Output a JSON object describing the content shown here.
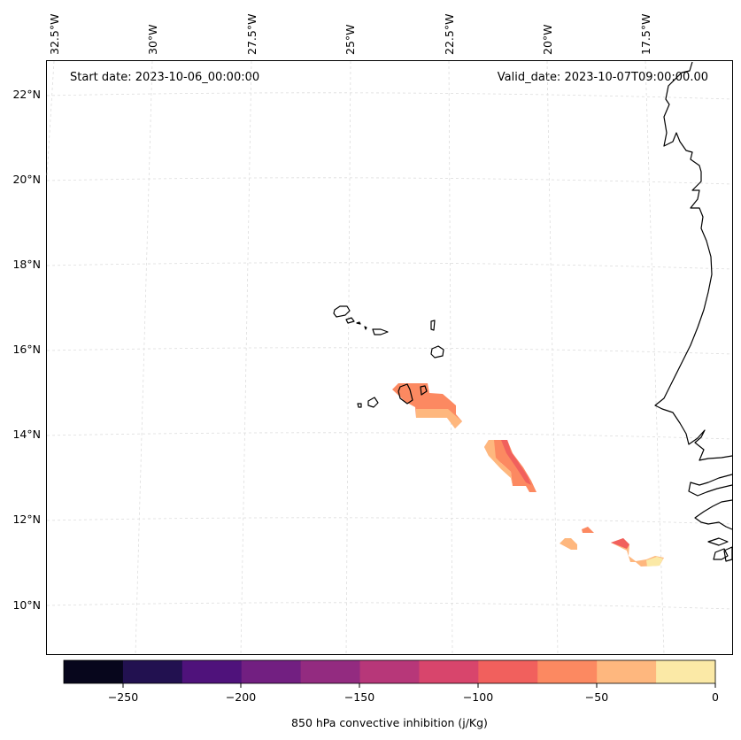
{
  "header": {
    "start_date": "Start date: 2023-10-06_00:00:00",
    "valid_date": "Valid_date: 2023-10-07T09:00:00.00"
  },
  "map": {
    "longitude_labels": [
      "32.5°W",
      "30°W",
      "27.5°W",
      "25°W",
      "22.5°W",
      "20°W",
      "17.5°W"
    ],
    "latitude_labels": [
      "22°N",
      "20°N",
      "18°N",
      "16°N",
      "14°N",
      "12°N",
      "10°N"
    ],
    "gridlines": true,
    "coastline_color": "#000000"
  },
  "colorbar": {
    "label": "850 hPa convective inhibition (j/Kg)",
    "tick_labels": [
      "−250",
      "−200",
      "−150",
      "−100",
      "−50",
      "0"
    ],
    "levels": [
      -275,
      -250,
      -225,
      -200,
      -175,
      -150,
      -125,
      -100,
      -75,
      -50,
      -25,
      0
    ],
    "colors": [
      "#07061c",
      "#221150",
      "#4f127b",
      "#721f81",
      "#932b80",
      "#b73779",
      "#d8456c",
      "#f1605d",
      "#fc8961",
      "#feb77e",
      "#fbe9a6"
    ]
  }
}
